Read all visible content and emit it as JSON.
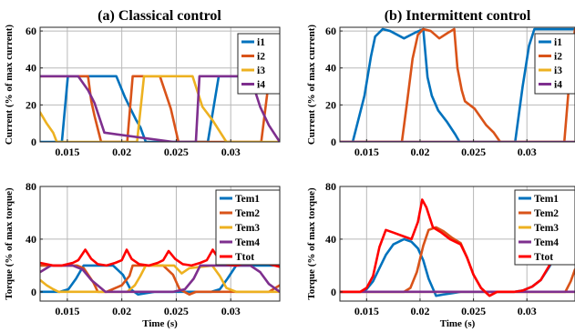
{
  "chart_data": [
    {
      "type": "line",
      "title": "(a) Classical control",
      "xlabel": "",
      "ylabel": "Current (% of max current)",
      "xlim": [
        0.0125,
        0.0345
      ],
      "ylim": [
        0,
        62
      ],
      "xticks": [
        0.015,
        0.02,
        0.025,
        0.03
      ],
      "xtick_labels": [
        "0.015",
        "0.02",
        "0.025",
        "0.03"
      ],
      "yticks": [
        0,
        20,
        40,
        60
      ],
      "ytick_labels": [
        "0",
        "20",
        "40",
        "60"
      ],
      "grid": true,
      "legend_position": "top-right",
      "series": [
        {
          "name": "i1",
          "color": "#0072BD",
          "x": [
            0.0125,
            0.0135,
            0.0145,
            0.01505,
            0.0165,
            0.019,
            0.0195,
            0.0203,
            0.0208,
            0.0213,
            0.0217,
            0.0222,
            0.0235,
            0.0279,
            0.0289,
            0.0345
          ],
          "y": [
            0,
            0,
            0,
            35.5,
            35.5,
            35.5,
            35.5,
            24,
            18,
            12,
            8,
            0,
            0,
            0,
            35.5,
            35.5
          ]
        },
        {
          "name": "i2",
          "color": "#D95319",
          "x": [
            0.0125,
            0.0154,
            0.0169,
            0.0172,
            0.0175,
            0.0181,
            0.0183,
            0.0205,
            0.021,
            0.0225,
            0.023,
            0.0235,
            0.0245,
            0.0252,
            0.0268,
            0.0328,
            0.03355,
            0.0345
          ],
          "y": [
            35.5,
            35.5,
            35.5,
            22,
            14,
            0,
            0,
            0,
            35.5,
            35.5,
            35.5,
            35.5,
            18,
            0,
            0,
            0,
            35.5,
            35.5
          ]
        },
        {
          "name": "i3",
          "color": "#EDB120",
          "x": [
            0.0125,
            0.0131,
            0.0137,
            0.01403,
            0.0214,
            0.02204,
            0.0235,
            0.0265,
            0.0274,
            0.0283,
            0.0296,
            0.0345
          ],
          "y": [
            16,
            10,
            5,
            0,
            0,
            35.5,
            35.5,
            35.5,
            19,
            12,
            0,
            0
          ]
        },
        {
          "name": "i4",
          "color": "#7E2F8E",
          "x": [
            0.0125,
            0.0135,
            0.0146,
            0.016,
            0.0169,
            0.0175,
            0.0184,
            0.0247,
            0.0255,
            0.0268,
            0.02713,
            0.028,
            0.0296,
            0.0318,
            0.0327,
            0.0335,
            0.0345
          ],
          "y": [
            35.5,
            35.5,
            35.5,
            35.5,
            28,
            21,
            5,
            0,
            0,
            0,
            35.5,
            35.5,
            35.5,
            35.5,
            19,
            9,
            0
          ]
        }
      ]
    },
    {
      "type": "line",
      "title": "(b) Intermittent control",
      "xlabel": "",
      "ylabel": "Current (% of max current)",
      "xlim": [
        0.0125,
        0.0345
      ],
      "ylim": [
        0,
        62
      ],
      "xticks": [
        0.015,
        0.02,
        0.025,
        0.03
      ],
      "xtick_labels": [
        "0.015",
        "0.02",
        "0.025",
        "0.03"
      ],
      "yticks": [
        0,
        20,
        40,
        60
      ],
      "ytick_labels": [
        "0",
        "20",
        "40",
        "60"
      ],
      "grid": true,
      "legend_position": "top-right",
      "series": [
        {
          "name": "i1",
          "color": "#0072BD",
          "x": [
            0.0125,
            0.0137,
            0.0148,
            0.0154,
            0.0158,
            0.0165,
            0.0172,
            0.0185,
            0.0195,
            0.0203,
            0.0207,
            0.0211,
            0.0217,
            0.0225,
            0.0233,
            0.0237,
            0.0289,
            0.0296,
            0.0302,
            0.0307,
            0.0345
          ],
          "y": [
            0,
            0,
            25,
            46,
            57,
            61,
            60,
            56,
            59,
            61,
            35,
            25,
            17,
            11,
            4,
            0,
            0,
            30,
            52,
            61,
            61
          ]
        },
        {
          "name": "i2",
          "color": "#D95319",
          "x": [
            0.0125,
            0.0183,
            0.0188,
            0.0193,
            0.0198,
            0.0203,
            0.021,
            0.0218,
            0.0226,
            0.0232,
            0.0235,
            0.0239,
            0.0242,
            0.0251,
            0.0262,
            0.0269,
            0.0275,
            0.0335,
            0.034,
            0.0345
          ],
          "y": [
            0,
            0,
            22,
            45,
            58,
            61,
            60,
            56,
            59,
            61,
            40,
            28,
            22,
            18,
            9,
            5,
            0,
            0,
            35,
            61
          ]
        },
        {
          "name": "i3",
          "color": "#EDB120",
          "x": [
            0.0125,
            0.0345
          ],
          "y": [
            0,
            0
          ]
        },
        {
          "name": "i4",
          "color": "#7E2F8E",
          "x": [
            0.0125,
            0.0345
          ],
          "y": [
            0,
            0
          ]
        }
      ]
    },
    {
      "type": "line",
      "title": "",
      "xlabel": "Time (s)",
      "ylabel": "Torque (% of max torque)",
      "xlim": [
        0.0125,
        0.0345
      ],
      "ylim": [
        -7,
        80
      ],
      "xticks": [
        0.015,
        0.02,
        0.025,
        0.03
      ],
      "xtick_labels": [
        "0.015",
        "0.02",
        "0.025",
        "0.03"
      ],
      "yticks": [
        0,
        40,
        80
      ],
      "ytick_labels": [
        "0",
        "40",
        "80"
      ],
      "grid": true,
      "legend_position": "top-right",
      "series": [
        {
          "name": "Tem1",
          "color": "#0072BD",
          "x": [
            0.0125,
            0.0143,
            0.0151,
            0.0158,
            0.0165,
            0.0192,
            0.0201,
            0.0208,
            0.0215,
            0.0222,
            0.023,
            0.0282,
            0.029,
            0.0297,
            0.0305,
            0.0345
          ],
          "y": [
            0,
            0,
            2,
            10,
            20,
            20,
            13,
            2,
            -2,
            -1,
            0,
            0,
            2,
            10,
            20,
            20
          ]
        },
        {
          "name": "Tem2",
          "color": "#D95319",
          "x": [
            0.0125,
            0.0159,
            0.0165,
            0.0174,
            0.0178,
            0.0186,
            0.02,
            0.0207,
            0.021,
            0.0238,
            0.0247,
            0.0253,
            0.0262,
            0.0268,
            0.0335,
            0.0345
          ],
          "y": [
            20,
            20,
            18,
            7,
            0,
            0,
            5,
            12,
            20,
            20,
            13,
            2,
            -2,
            0,
            0,
            5
          ]
        },
        {
          "name": "Tem3",
          "color": "#EDB120",
          "x": [
            0.0125,
            0.0131,
            0.0137,
            0.0142,
            0.0205,
            0.0212,
            0.0217,
            0.0222,
            0.0248,
            0.0255,
            0.0262,
            0.0283,
            0.029,
            0.0296,
            0.0305,
            0.0345
          ],
          "y": [
            9,
            5,
            2,
            0,
            0,
            5,
            12,
            20,
            20,
            14,
            18,
            20,
            12,
            3,
            0,
            0
          ]
        },
        {
          "name": "Tem4",
          "color": "#7E2F8E",
          "x": [
            0.0125,
            0.0135,
            0.0143,
            0.0155,
            0.0164,
            0.0172,
            0.0185,
            0.0247,
            0.0258,
            0.0266,
            0.0272,
            0.0296,
            0.0305,
            0.0318,
            0.0327,
            0.0335,
            0.0345
          ],
          "y": [
            15,
            20,
            20,
            20,
            17,
            9,
            0,
            0,
            2,
            10,
            20,
            20,
            20,
            20,
            15,
            6,
            0
          ]
        },
        {
          "name": "Ttot",
          "color": "#FF0000",
          "x": [
            0.0125,
            0.0137,
            0.0145,
            0.0155,
            0.016,
            0.01665,
            0.0172,
            0.0178,
            0.0186,
            0.0194,
            0.02,
            0.02045,
            0.0209,
            0.0216,
            0.0225,
            0.0233,
            0.0238,
            0.0243,
            0.0249,
            0.0256,
            0.0264,
            0.0272,
            0.0278,
            0.02835,
            0.0289,
            0.0296,
            0.0305,
            0.0314,
            0.0319,
            0.03245,
            0.0329,
            0.0336,
            0.0345
          ],
          "y": [
            22,
            20,
            20,
            22,
            24,
            32,
            25,
            21,
            20,
            22,
            24,
            32,
            25,
            21,
            20,
            22,
            24,
            31,
            25,
            21,
            20,
            22,
            24,
            32,
            25,
            21,
            20,
            22,
            24,
            32,
            25,
            21,
            19
          ]
        }
      ]
    },
    {
      "type": "line",
      "title": "",
      "xlabel": "Time (s)",
      "ylabel": "Torque (% of max torque)",
      "xlim": [
        0.0125,
        0.0345
      ],
      "ylim": [
        -7,
        80
      ],
      "xticks": [
        0.015,
        0.02,
        0.025,
        0.03
      ],
      "xtick_labels": [
        "0.015",
        "0.02",
        "0.025",
        "0.03"
      ],
      "yticks": [
        0,
        40,
        80
      ],
      "ytick_labels": [
        "0",
        "40",
        "80"
      ],
      "grid": true,
      "legend_position": "top-right",
      "series": [
        {
          "name": "Tem1",
          "color": "#0072BD",
          "x": [
            0.0125,
            0.0144,
            0.015,
            0.0156,
            0.0162,
            0.0168,
            0.0175,
            0.0185,
            0.0192,
            0.0198,
            0.0203,
            0.0208,
            0.0215,
            0.0222,
            0.023,
            0.0238,
            0.0288,
            0.0296,
            0.0305,
            0.0313,
            0.0321,
            0.0329,
            0.0337,
            0.0345
          ],
          "y": [
            0,
            0,
            2,
            8,
            18,
            28,
            36,
            40,
            38,
            33,
            24,
            10,
            -3,
            -2,
            -1,
            0,
            0,
            1,
            4,
            9,
            19,
            31,
            38,
            36
          ]
        },
        {
          "name": "Tem2",
          "color": "#D95319",
          "x": [
            0.0125,
            0.0185,
            0.0191,
            0.0197,
            0.0203,
            0.0208,
            0.0215,
            0.0222,
            0.023,
            0.0238,
            0.0244,
            0.025,
            0.0257,
            0.0265,
            0.0272,
            0.0336,
            0.0341,
            0.0345
          ],
          "y": [
            0,
            0,
            3,
            15,
            35,
            47,
            49,
            46,
            41,
            37,
            26,
            13,
            3,
            -3,
            0,
            0,
            8,
            17
          ]
        },
        {
          "name": "Tem3",
          "color": "#EDB120",
          "x": [
            0.0125,
            0.0345
          ],
          "y": [
            0,
            0
          ]
        },
        {
          "name": "Tem4",
          "color": "#7E2F8E",
          "x": [
            0.0125,
            0.0345
          ],
          "y": [
            0,
            0
          ]
        },
        {
          "name": "Ttot",
          "color": "#FF0000",
          "x": [
            0.0125,
            0.0144,
            0.015,
            0.0156,
            0.0162,
            0.0168,
            0.0175,
            0.0185,
            0.0192,
            0.0198,
            0.0202,
            0.0206,
            0.0212,
            0.022,
            0.0228,
            0.0238,
            0.0244,
            0.025,
            0.0257,
            0.0265,
            0.0272,
            0.0288,
            0.0296,
            0.0305,
            0.0313,
            0.0321,
            0.0329,
            0.0337,
            0.0345
          ],
          "y": [
            0,
            0,
            3,
            12,
            34,
            47,
            45,
            42,
            40,
            53,
            70,
            64,
            49,
            45,
            40,
            36,
            26,
            13,
            3,
            -3,
            0,
            0,
            1,
            4,
            9,
            20,
            33,
            46,
            53
          ]
        }
      ]
    }
  ]
}
